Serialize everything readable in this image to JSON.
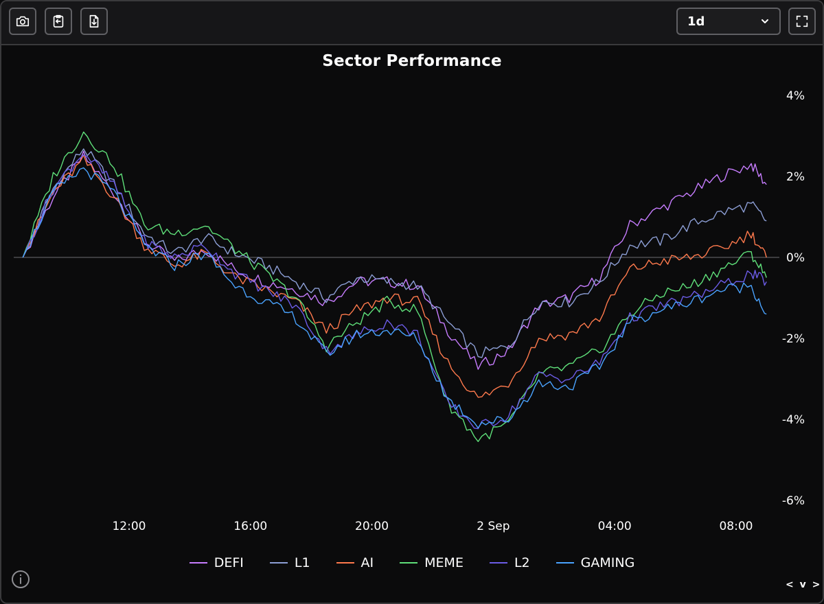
{
  "toolbar": {
    "camera_icon": "camera-icon",
    "clipboard_icon": "clipboard-copy-icon",
    "download_icon": "download-file-icon",
    "range_value": "1d",
    "fullscreen_icon": "fullscreen-icon"
  },
  "footer": {
    "info_icon": "info-icon",
    "nav_label": "< v >"
  },
  "chart_data": {
    "type": "line",
    "title": "Sector Performance",
    "x_ticks": [
      {
        "label": "12:00",
        "x": 12
      },
      {
        "label": "16:00",
        "x": 16
      },
      {
        "label": "20:00",
        "x": 20
      },
      {
        "label": "2 Sep",
        "x": 24
      },
      {
        "label": "04:00",
        "x": 28
      },
      {
        "label": "08:00",
        "x": 32
      }
    ],
    "y_ticks": [
      4,
      2,
      0,
      -2,
      -4,
      -6
    ],
    "y_tick_labels": [
      "4%",
      "2%",
      "0%",
      "-2%",
      "-4%",
      "-6%"
    ],
    "ylim": [
      -6,
      4
    ],
    "xlim": [
      8.2,
      33.2
    ],
    "grid": false,
    "zero_line": true,
    "legend_position": "bottom",
    "x": [
      8.5,
      9.5,
      10.5,
      11.5,
      12.5,
      13.5,
      14.5,
      15.5,
      16.5,
      17.5,
      18.5,
      19.5,
      20.5,
      21.5,
      22.5,
      23.5,
      24.5,
      25.5,
      26.5,
      27.5,
      28.5,
      29.5,
      30.5,
      31.5,
      32.5,
      33.0
    ],
    "series": [
      {
        "name": "DEFI",
        "color": "#c77dff",
        "values": [
          0,
          1.5,
          2.5,
          1.6,
          0.4,
          -0.1,
          0.2,
          -0.3,
          -0.6,
          -0.8,
          -1.1,
          -0.6,
          -0.6,
          -0.7,
          -1.8,
          -2.7,
          -2.3,
          -1.2,
          -1.0,
          -0.5,
          0.8,
          1.2,
          1.6,
          2.0,
          2.3,
          1.8
        ]
      },
      {
        "name": "L1",
        "color": "#8d9fd6",
        "values": [
          0,
          1.7,
          2.7,
          1.8,
          0.6,
          0.1,
          0.5,
          0.1,
          -0.2,
          -0.6,
          -1.0,
          -0.5,
          -0.6,
          -0.7,
          -1.6,
          -2.4,
          -2.2,
          -1.1,
          -1.1,
          -0.6,
          0.3,
          0.4,
          0.8,
          1.1,
          1.3,
          0.9
        ]
      },
      {
        "name": "AI",
        "color": "#ff7a4d",
        "values": [
          0,
          1.6,
          2.4,
          1.5,
          0.3,
          -0.2,
          0.1,
          -0.5,
          -0.8,
          -1.1,
          -1.8,
          -1.3,
          -1.0,
          -1.1,
          -2.6,
          -3.5,
          -3.1,
          -2.0,
          -1.9,
          -1.5,
          -0.3,
          -0.1,
          0.0,
          0.2,
          0.6,
          0.0
        ]
      },
      {
        "name": "MEME",
        "color": "#5fe07a",
        "values": [
          0,
          2.0,
          3.1,
          2.3,
          0.8,
          0.6,
          0.8,
          0.2,
          -0.4,
          -1.0,
          -2.2,
          -1.6,
          -1.1,
          -1.3,
          -3.6,
          -4.5,
          -4.1,
          -2.9,
          -2.7,
          -2.3,
          -1.4,
          -0.9,
          -0.7,
          -0.3,
          0.1,
          -0.5
        ]
      },
      {
        "name": "L2",
        "color": "#6c5ce7",
        "values": [
          0,
          1.7,
          2.6,
          1.8,
          0.4,
          0.0,
          0.3,
          -0.4,
          -0.8,
          -1.2,
          -2.3,
          -1.9,
          -1.6,
          -1.9,
          -3.6,
          -4.2,
          -3.9,
          -2.9,
          -3.0,
          -2.6,
          -1.5,
          -1.2,
          -1.0,
          -0.7,
          -0.4,
          -0.6
        ]
      },
      {
        "name": "GAMING",
        "color": "#4aa3ff",
        "values": [
          0,
          1.6,
          2.2,
          1.6,
          0.3,
          -0.2,
          0.1,
          -0.7,
          -1.1,
          -1.5,
          -2.4,
          -1.9,
          -1.8,
          -2.0,
          -3.5,
          -4.1,
          -4.0,
          -3.1,
          -3.2,
          -2.7,
          -1.6,
          -1.3,
          -1.1,
          -0.8,
          -0.7,
          -1.4
        ]
      }
    ]
  }
}
